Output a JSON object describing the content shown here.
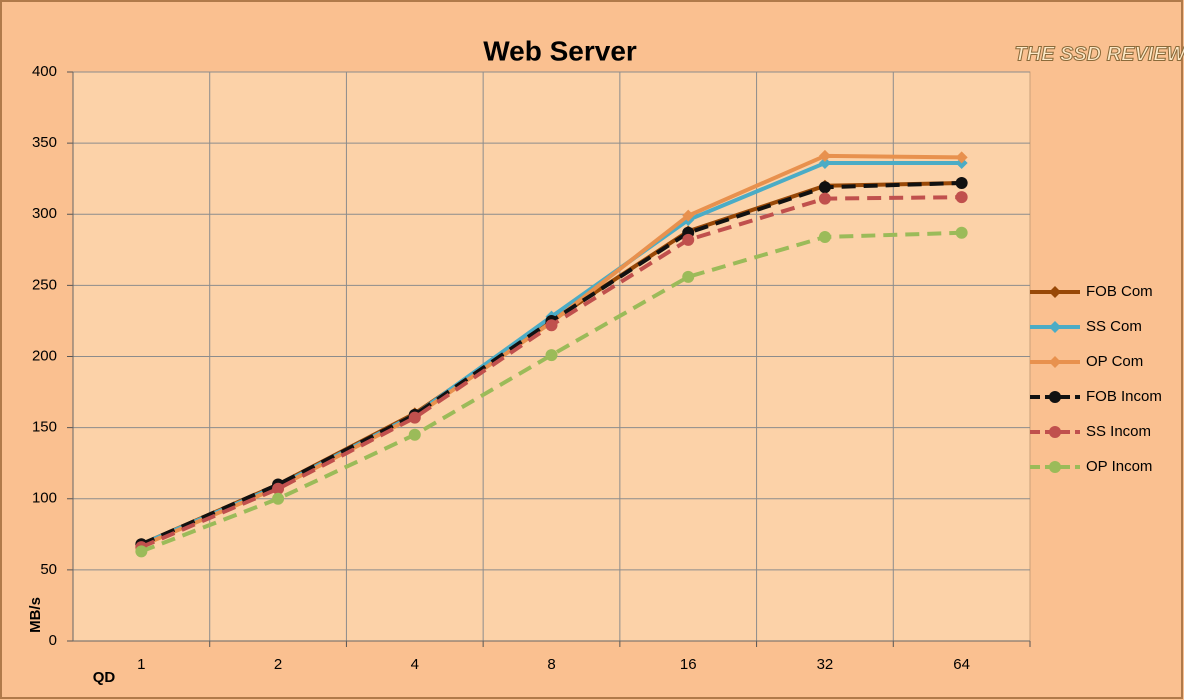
{
  "chart_data": {
    "type": "line",
    "title": "Web Server",
    "logo": "THE SSD REVIEW",
    "x_label": "QD",
    "y_label": "MB/s",
    "categories": [
      "1",
      "2",
      "4",
      "8",
      "16",
      "32",
      "64"
    ],
    "ylim": [
      0,
      400
    ],
    "yticks": [
      0,
      50,
      100,
      150,
      200,
      250,
      300,
      350,
      400
    ],
    "grid": true,
    "legend": "right",
    "series": [
      {
        "name": "FOB Com",
        "color": "#984807",
        "marker": "diamond",
        "dashed": false,
        "values": [
          68,
          110,
          160,
          225,
          288,
          320,
          322
        ]
      },
      {
        "name": "SS Com",
        "color": "#4bacc6",
        "marker": "diamond",
        "dashed": false,
        "values": [
          68,
          109,
          159,
          228,
          296,
          336,
          336
        ]
      },
      {
        "name": "OP Com",
        "color": "#e8914e",
        "marker": "diamond",
        "dashed": false,
        "values": [
          67,
          108,
          158,
          224,
          299,
          341,
          340
        ]
      },
      {
        "name": "FOB Incom",
        "color": "#111111",
        "marker": "circle",
        "dashed": true,
        "values": [
          68,
          110,
          159,
          225,
          287,
          319,
          322
        ]
      },
      {
        "name": "SS Incom",
        "color": "#c0504d",
        "marker": "circle",
        "dashed": true,
        "values": [
          66,
          107,
          157,
          222,
          282,
          311,
          312
        ]
      },
      {
        "name": "OP Incom",
        "color": "#9bbb59",
        "marker": "circle",
        "dashed": true,
        "values": [
          63,
          100,
          145,
          201,
          256,
          284,
          287
        ]
      }
    ]
  }
}
